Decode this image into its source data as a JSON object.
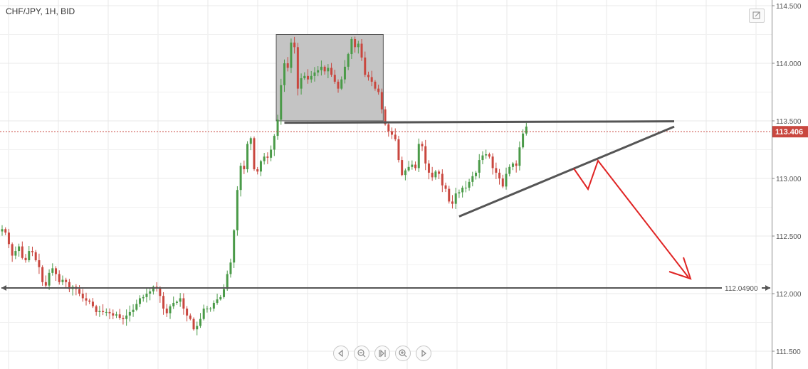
{
  "header": {
    "title": "CHF/JPY, 1H, BID"
  },
  "colors": {
    "up": "#4a9a48",
    "down": "#c9473f",
    "price_line": "#c9473f",
    "price_badge": "#c9473f",
    "drawing": "#555555",
    "arrow": "#e02424",
    "grid": "#e9e9e9"
  },
  "icons": [
    "expand-icon",
    "scroll-left-icon",
    "zoom-out-icon",
    "reset-icon",
    "zoom-in-icon",
    "scroll-right-icon"
  ],
  "chart_data": {
    "type": "candlestick",
    "title": "CHF/JPY, 1H, BID",
    "y_ticks": [
      "114.500",
      "114.000",
      "113.500",
      "113.000",
      "112.500",
      "112.000",
      "111.500"
    ],
    "ylim": [
      111.4,
      114.52
    ],
    "grid": true,
    "current_price": "113.406",
    "horizontal_level": "112.04900",
    "closes": [
      112.56,
      112.53,
      112.43,
      112.33,
      112.37,
      112.41,
      112.31,
      112.29,
      112.37,
      112.36,
      112.29,
      112.23,
      112.1,
      112.07,
      112.18,
      112.22,
      112.17,
      112.1,
      112.12,
      112.1,
      112.04,
      112.06,
      112.04,
      112.0,
      111.96,
      111.94,
      111.93,
      111.89,
      111.84,
      111.85,
      111.84,
      111.84,
      111.83,
      111.81,
      111.82,
      111.79,
      111.78,
      111.81,
      111.84,
      111.86,
      111.91,
      111.96,
      111.97,
      112.0,
      112.02,
      112.06,
      112.05,
      111.98,
      111.87,
      111.83,
      111.89,
      111.92,
      111.93,
      111.96,
      111.87,
      111.81,
      111.78,
      111.69,
      111.72,
      111.78,
      111.87,
      111.87,
      111.87,
      111.92,
      111.95,
      111.97,
      112.04,
      112.17,
      112.27,
      112.55,
      112.9,
      113.11,
      113.08,
      113.3,
      113.35,
      113.08,
      113.06,
      113.15,
      113.19,
      113.18,
      113.25,
      113.37,
      113.51,
      113.81,
      114.0,
      113.96,
      114.18,
      114.14,
      113.78,
      113.87,
      113.89,
      113.86,
      113.89,
      113.92,
      113.94,
      113.97,
      113.93,
      113.96,
      113.9,
      113.84,
      113.78,
      113.86,
      113.97,
      114.08,
      114.21,
      114.14,
      114.17,
      114.05,
      113.9,
      113.88,
      113.84,
      113.78,
      113.75,
      113.6,
      113.47,
      113.41,
      113.38,
      113.34,
      113.16,
      113.03,
      113.07,
      113.1,
      113.12,
      113.09,
      113.3,
      113.28,
      113.13,
      113.05,
      113.01,
      113.06,
      113.04,
      112.94,
      112.91,
      112.8,
      112.78,
      112.87,
      112.88,
      112.92,
      112.92,
      112.97,
      113.02,
      113.05,
      113.16,
      113.2,
      113.21,
      113.19,
      113.09,
      113.05,
      113.0,
      112.93,
      113.04,
      113.1,
      113.13,
      113.11,
      113.27,
      113.39,
      113.45
    ]
  },
  "annotations": {
    "consolidation_box": {
      "from_index": 82,
      "to_index": 113,
      "low": 113.5,
      "high": 114.25
    },
    "resistance_line": {
      "from_index": 84,
      "to_index": 200,
      "price": 113.49
    },
    "rising_trendline": {
      "from_index": 136,
      "from_price": 112.67,
      "to_index": 200,
      "to_price": 113.45
    },
    "projection_arrow": "down"
  }
}
